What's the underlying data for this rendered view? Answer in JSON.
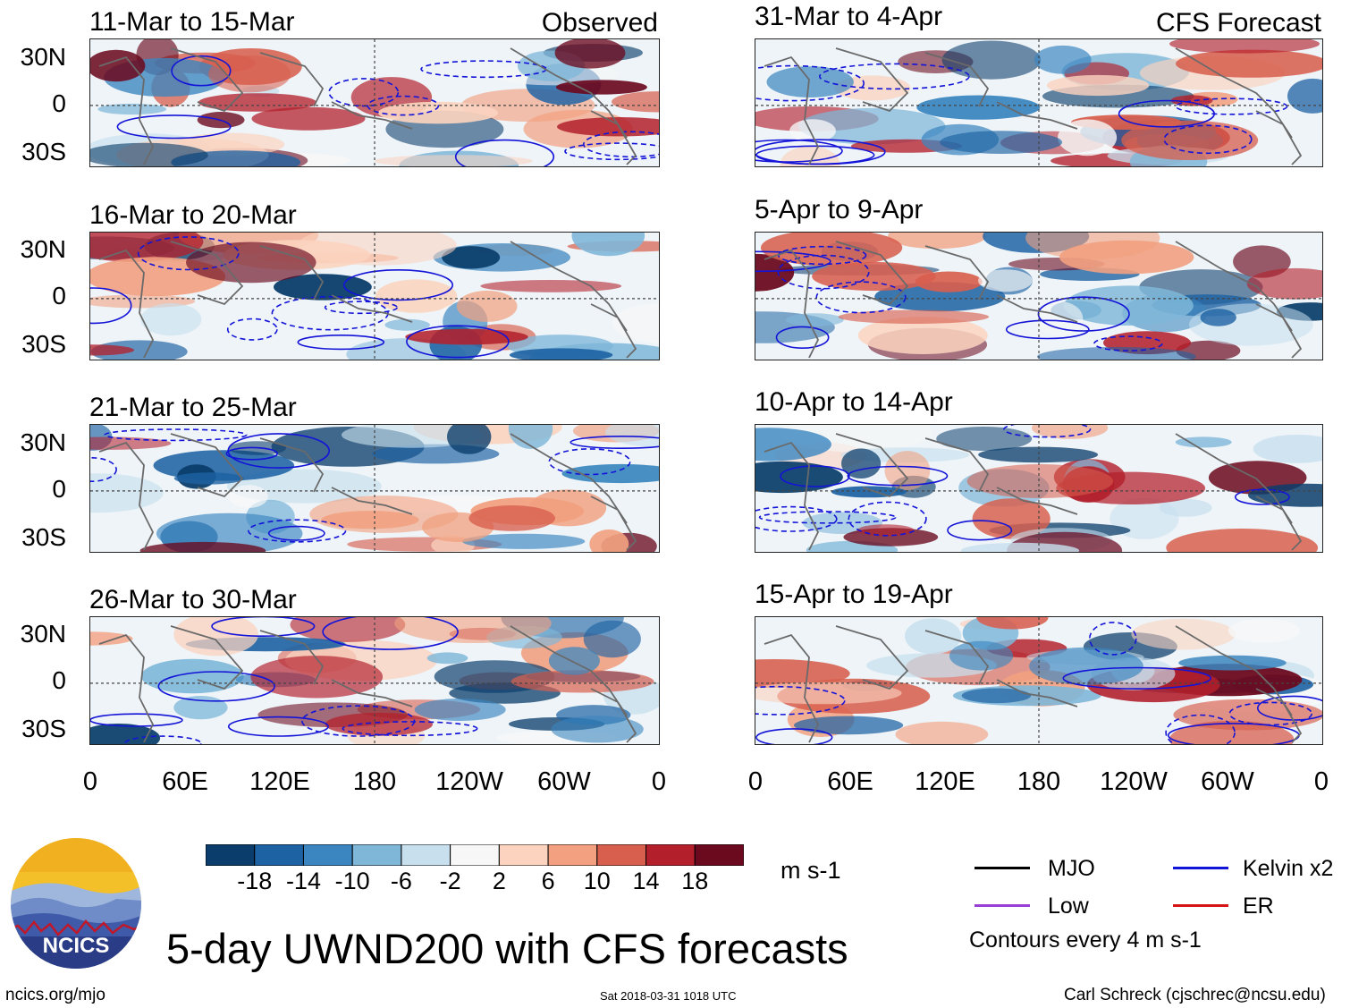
{
  "observed_label": "Observed",
  "forecast_label": "CFS Forecast",
  "observed_panels": [
    {
      "title": "11-Mar to 15-Mar"
    },
    {
      "title": "16-Mar to 20-Mar"
    },
    {
      "title": "21-Mar to 25-Mar"
    },
    {
      "title": "26-Mar to 30-Mar"
    }
  ],
  "forecast_panels": [
    {
      "title": "31-Mar to 4-Apr"
    },
    {
      "title": "5-Apr to 9-Apr"
    },
    {
      "title": "10-Apr to 14-Apr"
    },
    {
      "title": "15-Apr to 19-Apr"
    }
  ],
  "lat_labels": [
    "30N",
    "0",
    "30S"
  ],
  "lon_labels": [
    "0",
    "60E",
    "120E",
    "180",
    "120W",
    "60W",
    "0"
  ],
  "colorbar": {
    "ticks": [
      "-18",
      "-14",
      "-10",
      "-6",
      "-2",
      "2",
      "6",
      "10",
      "14",
      "18"
    ],
    "colors": [
      "#0a3d6b",
      "#1d62a3",
      "#3b86c0",
      "#7fb7d9",
      "#c8e0ee",
      "#f7f7f7",
      "#fbd3bf",
      "#f2a07f",
      "#d85f4e",
      "#b3202c",
      "#6b0a1f"
    ],
    "units": "m s-1"
  },
  "legend": {
    "items": [
      {
        "label": "MJO",
        "color": "#000000"
      },
      {
        "label": "Kelvin x2",
        "color": "#1414d8"
      },
      {
        "label": "Low",
        "color": "#9a3fd6"
      },
      {
        "label": "ER",
        "color": "#d61414"
      }
    ],
    "contour_note": "Contours every 4 m s-1"
  },
  "logo_text": "NCICS",
  "main_title": "5-day UWND200 with CFS forecasts",
  "footer": {
    "site": "ncics.org/mjo",
    "timestamp": "Sat 2018-03-31 1018 UTC",
    "credit": "Carl Schreck (cjschrec@ncsu.edu)"
  }
}
